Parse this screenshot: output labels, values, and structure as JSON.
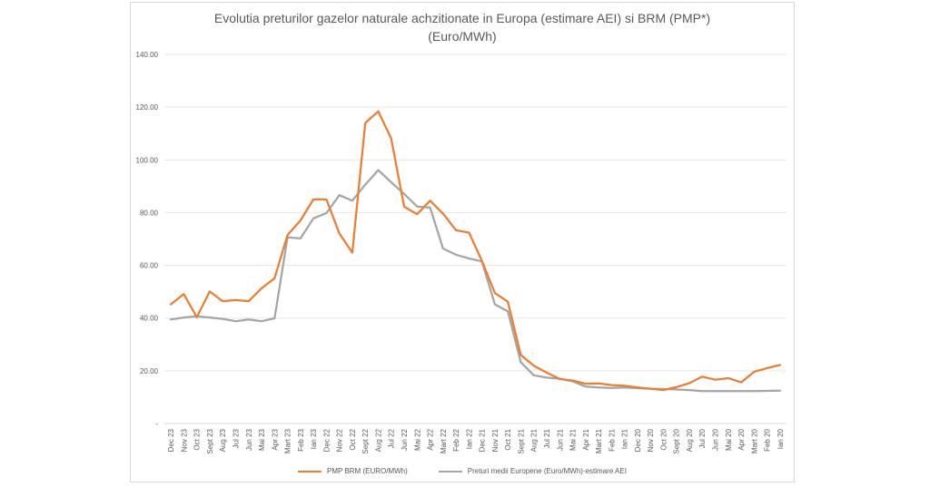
{
  "chart_data": {
    "type": "line",
    "title_line1": "Evolutia preturilor gazelor naturale achzitionate in Europa (estimare AEI) si BRM  (PMP*)",
    "title_line2": "(Euro/MWh)",
    "xlabel": "",
    "ylabel": "",
    "ylim": [
      0,
      140
    ],
    "yticks": [
      {
        "value": 0,
        "label": "-"
      },
      {
        "value": 20,
        "label": "20.00"
      },
      {
        "value": 40,
        "label": "40.00"
      },
      {
        "value": 60,
        "label": "60.00"
      },
      {
        "value": 80,
        "label": "80.00"
      },
      {
        "value": 100,
        "label": "100.00"
      },
      {
        "value": 120,
        "label": "120.00"
      },
      {
        "value": 140,
        "label": "140.00"
      }
    ],
    "grid": true,
    "legend_position": "bottom",
    "categories": [
      "Dec 23",
      "Nov 23",
      "Oct 23",
      "Sept 23",
      "Aug 23",
      "Jul 23",
      "Jun 23",
      "Mai 23",
      "Apr 23",
      "Mart 23",
      "Feb 23",
      "Ian 23",
      "Dec 22",
      "Nov 22",
      "Oct 22",
      "Sept 22",
      "Aug 22",
      "Jul 22",
      "Jun 22",
      "Mai 22",
      "Apr 22",
      "Mart 22",
      "Feb 22",
      "Ian 22",
      "Dec 21",
      "Nov 21",
      "Oct 21",
      "Sept 21",
      "Aug 21",
      "Jul 21",
      "Jun 21",
      "Mai 21",
      "Apr 21",
      "Mart 21",
      "Feb 21",
      "Ian 21",
      "Dec 20",
      "Nov 20",
      "Oct 20",
      "Sept 20",
      "Aug 20",
      "Jul 20",
      "Jun 20",
      "Mai 20",
      "Apr 20",
      "Mart 20",
      "Feb 20",
      "Ian 20"
    ],
    "series": [
      {
        "name": "PMP BRM (EURO/MWh)",
        "color": "#ed7d31",
        "values": [
          45.2,
          49.1,
          40.3,
          50.1,
          46.4,
          46.8,
          46.4,
          51.3,
          55.1,
          71.5,
          77.0,
          85.0,
          85.0,
          72.1,
          64.8,
          114.0,
          118.4,
          108.1,
          82.2,
          79.4,
          84.5,
          79.6,
          73.3,
          72.4,
          61.7,
          49.5,
          46.2,
          26.0,
          21.9,
          19.3,
          16.9,
          16.3,
          15.1,
          15.2,
          14.6,
          14.3,
          13.7,
          13.2,
          12.7,
          13.8,
          15.3,
          17.8,
          16.6,
          17.2,
          15.6,
          19.6,
          21.0,
          22.2
        ]
      },
      {
        "name": "Preturi medii Europene (Euro/MWh)-estimare AEI",
        "color": "#a5a5a5",
        "values": [
          39.5,
          40.2,
          40.7,
          40.2,
          39.7,
          38.8,
          39.5,
          38.8,
          39.9,
          70.6,
          70.2,
          77.8,
          79.8,
          86.6,
          84.5,
          90.6,
          96.1,
          91.5,
          87.1,
          82.3,
          81.9,
          66.4,
          64.0,
          62.6,
          61.5,
          45.2,
          42.5,
          23.3,
          18.3,
          17.4,
          17.0,
          16.0,
          14.0,
          13.7,
          13.5,
          13.7,
          13.4,
          13.2,
          13.1,
          12.9,
          12.7,
          12.3,
          12.3,
          12.3,
          12.3,
          12.3,
          12.4,
          12.5
        ]
      }
    ]
  }
}
